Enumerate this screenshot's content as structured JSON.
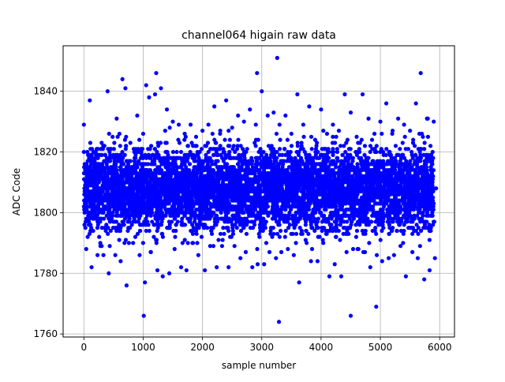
{
  "chart_data": {
    "type": "scatter",
    "title": "channel064 higain raw data",
    "xlabel": "sample number",
    "ylabel": "ADC Code",
    "xlim": [
      -350,
      6250
    ],
    "ylim": [
      1759,
      1855
    ],
    "x_ticks": [
      0,
      1000,
      2000,
      3000,
      4000,
      5000,
      6000
    ],
    "y_ticks": [
      1760,
      1780,
      1800,
      1820,
      1840
    ],
    "grid": true,
    "legend": "none",
    "marker_color": "#0000ff",
    "series": [
      {
        "color": "#0000ff",
        "x": [
          0,
          100,
          200,
          300,
          400,
          500,
          600,
          700,
          800,
          900,
          1000,
          1100,
          1200,
          1300,
          1400,
          1500,
          1600,
          1700,
          1800,
          1900,
          2000,
          2100,
          2200,
          2300,
          2400,
          2500,
          2600,
          2700,
          2800,
          2900,
          3000,
          3100,
          3200,
          3300,
          3400,
          3500,
          3600,
          3700,
          3800,
          3900,
          4000,
          4100,
          4200,
          4300,
          4400,
          4500,
          4600,
          4700,
          4800,
          4900,
          5000,
          5100,
          5200,
          5300,
          5400,
          5500,
          5600,
          5700,
          5800,
          5900,
          40,
          130,
          230,
          330,
          420,
          530,
          620,
          720,
          830,
          940,
          1030,
          1130,
          1240,
          1330,
          1440,
          1530,
          1640,
          1730,
          1840,
          1930,
          2040,
          2130,
          2240,
          2330,
          2440,
          2540,
          2640,
          2730,
          2840,
          2930,
          3040,
          3130,
          3240,
          3330,
          3440,
          3540,
          3630,
          3740,
          3830,
          3940,
          4030,
          4140,
          4230,
          4340,
          4430,
          4540,
          4630,
          4740,
          4830,
          4940,
          5030,
          5140,
          5230,
          5340,
          5430,
          5540,
          5630,
          5740,
          5830,
          5920,
          60,
          170,
          260,
          360,
          470,
          560,
          670,
          760,
          870,
          960,
          1070,
          1160,
          1270,
          1360,
          1470,
          1560,
          1670,
          1760,
          1870,
          1960,
          2070,
          2160,
          2270,
          2360,
          2470,
          2560,
          2670,
          2760,
          2870,
          2960,
          3070,
          3160,
          3270,
          3360,
          3470,
          3560,
          3670,
          3760,
          3870,
          3960,
          4070,
          4160,
          4270,
          4360,
          4470,
          4560,
          4670,
          4760,
          4870,
          4960,
          5070,
          5160,
          5270,
          5360,
          5470,
          5560,
          5670,
          5760,
          5870,
          5940,
          1010,
          1220,
          3260,
          3290,
          4500,
          4930,
          1050,
          2920,
          650,
          5680,
          10,
          80,
          150,
          250,
          350,
          450,
          550,
          650,
          750,
          850,
          950,
          1050,
          1150,
          1250,
          1350,
          1450,
          1550,
          1650,
          1750,
          1850,
          1950,
          2050,
          2150,
          2250,
          2350,
          2450,
          2550,
          2650,
          2750,
          2850,
          2950,
          3050,
          3150,
          3250,
          3350,
          3450,
          3550,
          3650,
          3750,
          3850,
          3950,
          4050,
          4150,
          4250,
          4350,
          4450,
          4550,
          4650,
          4750,
          4850,
          4950,
          5050,
          5150,
          5250,
          5350,
          5450,
          5550,
          5650,
          5750,
          5850,
          5910
        ],
        "y": [
          1829,
          1837,
          1820,
          1823,
          1840,
          1818,
          1826,
          1841,
          1815,
          1832,
          1826,
          1838,
          1839,
          1841,
          1834,
          1830,
          1829,
          1826,
          1829,
          1822,
          1827,
          1829,
          1835,
          1827,
          1837,
          1828,
          1832,
          1830,
          1834,
          1829,
          1840,
          1832,
          1833,
          1829,
          1832,
          1826,
          1839,
          1829,
          1835,
          1824,
          1834,
          1826,
          1829,
          1827,
          1839,
          1833,
          1825,
          1839,
          1831,
          1826,
          1830,
          1836,
          1826,
          1831,
          1829,
          1827,
          1836,
          1826,
          1831,
          1830,
          1788,
          1782,
          1786,
          1786,
          1780,
          1786,
          1784,
          1776,
          1790,
          1786,
          1777,
          1787,
          1781,
          1779,
          1780,
          1788,
          1782,
          1781,
          1790,
          1786,
          1781,
          1789,
          1782,
          1789,
          1782,
          1789,
          1785,
          1787,
          1782,
          1783,
          1783,
          1787,
          1785,
          1787,
          1788,
          1786,
          1777,
          1791,
          1784,
          1784,
          1791,
          1779,
          1783,
          1779,
          1787,
          1788,
          1788,
          1787,
          1782,
          1786,
          1784,
          1785,
          1786,
          1789,
          1779,
          1787,
          1785,
          1778,
          1781,
          1785,
          1812,
          1815,
          1808,
          1806,
          1811,
          1803,
          1809,
          1812,
          1806,
          1814,
          1809,
          1803,
          1811,
          1807,
          1814,
          1806,
          1811,
          1804,
          1812,
          1808,
          1803,
          1810,
          1813,
          1806,
          1809,
          1812,
          1804,
          1811,
          1807,
          1814,
          1806,
          1809,
          1812,
          1803,
          1810,
          1808,
          1813,
          1805,
          1811,
          1806,
          1812,
          1808,
          1804,
          1810,
          1813,
          1807,
          1809,
          1805,
          1812,
          1806,
          1811,
          1808,
          1803,
          1810,
          1813,
          1807,
          1809,
          1804,
          1812,
          1808,
          1766,
          1846,
          1851,
          1764,
          1766,
          1769,
          1842,
          1846,
          1844,
          1846,
          1796,
          1798,
          1794,
          1797,
          1795,
          1799,
          1794,
          1797,
          1795,
          1798,
          1796,
          1794,
          1797,
          1795,
          1799,
          1796,
          1794,
          1797,
          1798,
          1795,
          1796,
          1799,
          1794,
          1797,
          1795,
          1798,
          1796,
          1794,
          1797,
          1795,
          1799,
          1796,
          1794,
          1797,
          1798,
          1795,
          1796,
          1799,
          1794,
          1797,
          1795,
          1798,
          1796,
          1794,
          1797,
          1795,
          1799,
          1796,
          1794,
          1797,
          1798,
          1795,
          1796,
          1799,
          1794,
          1797,
          1795,
          1798,
          1796,
          1794,
          1797
        ]
      }
    ]
  }
}
